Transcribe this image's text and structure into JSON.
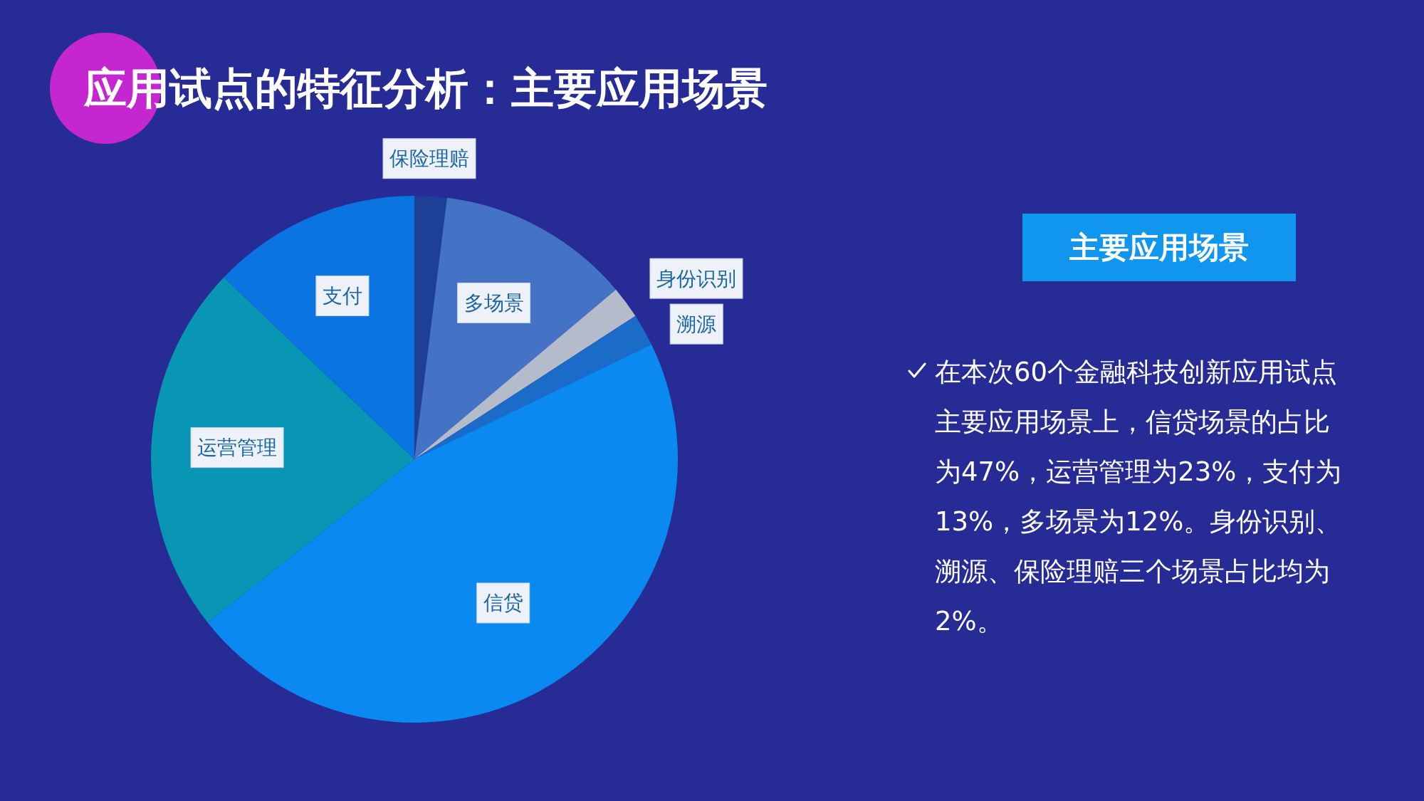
{
  "chart_data": {
    "type": "pie",
    "title": "应用试点的特征分析：主要应用场景",
    "subtitle": "主要应用场景",
    "categories": [
      "保险理赔",
      "多场景",
      "身份识别",
      "溯源",
      "信贷",
      "运营管理",
      "支付"
    ],
    "values": [
      2,
      12,
      2,
      2,
      47,
      23,
      13
    ],
    "colors": [
      "#1e3f96",
      "#4472c4",
      "#b4bccb",
      "#1a6cc8",
      "#0a8af0",
      "#0896b4",
      "#0a74e0"
    ],
    "annotations": [
      "在本次60个金融科技创新应用试点主要应用场景上，信贷场景的占比为47%，运营管理为23%，支付为13%，多场景为12%。身份识别、溯源、保险理赔三个场景占比均为2%。"
    ]
  }
}
